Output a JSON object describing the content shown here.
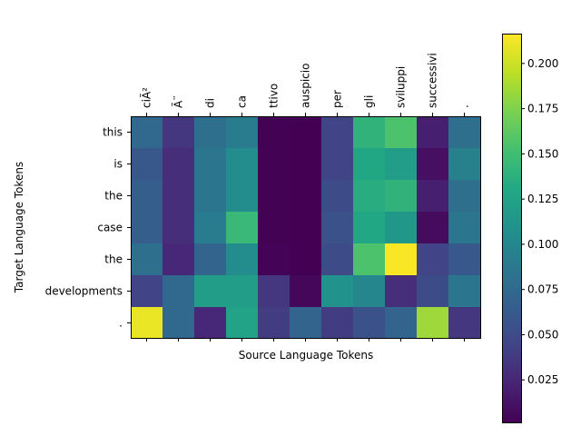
{
  "chart_data": {
    "type": "heatmap",
    "title": "",
    "xlabel": "Source Language Tokens",
    "ylabel": "Target Language Tokens",
    "x_tokens": [
      "ciÃ²",
      "Ã¨",
      "di",
      "ca",
      "ttivo",
      "auspicio",
      "per",
      "gli",
      "sviluppi",
      "successivi",
      "."
    ],
    "y_tokens": [
      "this",
      "is",
      "the",
      "case",
      "the",
      "developments",
      "."
    ],
    "values": [
      [
        0.075,
        0.035,
        0.08,
        0.09,
        0.002,
        0.001,
        0.045,
        0.14,
        0.155,
        0.02,
        0.08
      ],
      [
        0.06,
        0.03,
        0.085,
        0.105,
        0.002,
        0.001,
        0.045,
        0.13,
        0.12,
        0.01,
        0.095
      ],
      [
        0.065,
        0.03,
        0.085,
        0.105,
        0.002,
        0.001,
        0.05,
        0.135,
        0.14,
        0.02,
        0.08
      ],
      [
        0.065,
        0.03,
        0.09,
        0.145,
        0.002,
        0.001,
        0.055,
        0.13,
        0.115,
        0.008,
        0.085
      ],
      [
        0.08,
        0.025,
        0.07,
        0.105,
        0.003,
        0.001,
        0.05,
        0.155,
        0.215,
        0.045,
        0.06
      ],
      [
        0.045,
        0.075,
        0.12,
        0.12,
        0.035,
        0.005,
        0.11,
        0.1,
        0.03,
        0.05,
        0.085
      ],
      [
        0.21,
        0.075,
        0.025,
        0.125,
        0.04,
        0.07,
        0.04,
        0.055,
        0.07,
        0.185,
        0.035
      ]
    ],
    "colormap": "viridis",
    "vmin": 0.0015,
    "vmax": 0.2165,
    "colorbar_ticks": [
      0.025,
      0.05,
      0.075,
      0.1,
      0.125,
      0.15,
      0.175,
      0.2
    ],
    "colorbar_tick_labels": [
      "0.025",
      "0.050",
      "0.075",
      "0.100",
      "0.125",
      "0.150",
      "0.175",
      "0.200"
    ]
  }
}
